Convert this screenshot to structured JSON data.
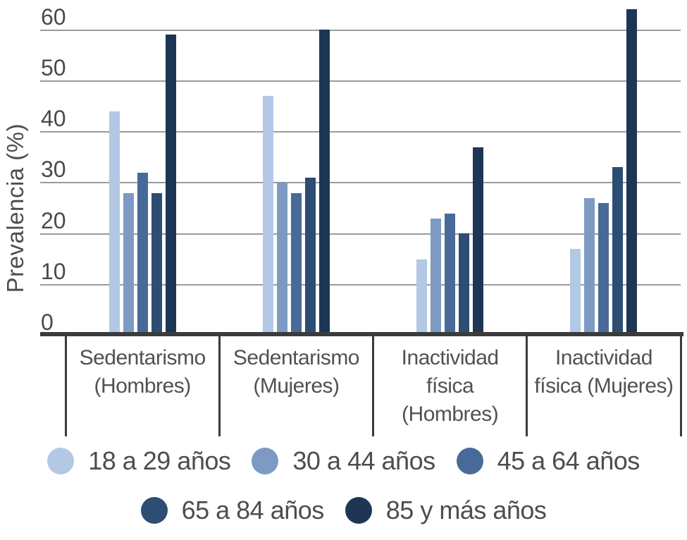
{
  "chart_data": {
    "type": "bar",
    "ylabel": "Prevalencia (%)",
    "ylim": [
      0,
      60
    ],
    "yticks": [
      0,
      10,
      20,
      30,
      40,
      50,
      60
    ],
    "grid": true,
    "legend_position": "bottom",
    "categories": [
      "Sedentarismo (Hombres)",
      "Sedentarismo (Mujeres)",
      "Inactividad física (Hombres)",
      "Inactividad física (Mujeres)"
    ],
    "category_label_lines": [
      [
        "Sedentarismo",
        "(Hombres)"
      ],
      [
        "Sedentarismo",
        "(Mujeres)"
      ],
      [
        "Inactividad",
        "física",
        "(Hombres)"
      ],
      [
        "Inactividad",
        "física (Mujeres)"
      ]
    ],
    "series": [
      {
        "name": "18 a 29 años",
        "color": "#b3c8e4",
        "values": [
          44,
          47,
          15,
          17
        ]
      },
      {
        "name": "30 a 44 años",
        "color": "#7d9bc2",
        "values": [
          28,
          30,
          23,
          27
        ]
      },
      {
        "name": "45 a 64 años",
        "color": "#486a99",
        "values": [
          32,
          28,
          24,
          26
        ]
      },
      {
        "name": "65 a 84 años",
        "color": "#2d4d72",
        "values": [
          28,
          31,
          20,
          33
        ]
      },
      {
        "name": "85 y más años",
        "color": "#1e3656",
        "values": [
          59,
          60,
          37,
          64
        ]
      }
    ],
    "legend_rows": [
      [
        0,
        1,
        2
      ],
      [
        3,
        4
      ]
    ]
  },
  "colors": {
    "gridline": "#9b9b9b",
    "axis": "#3b3b3b",
    "text": "#4d4d4d"
  }
}
